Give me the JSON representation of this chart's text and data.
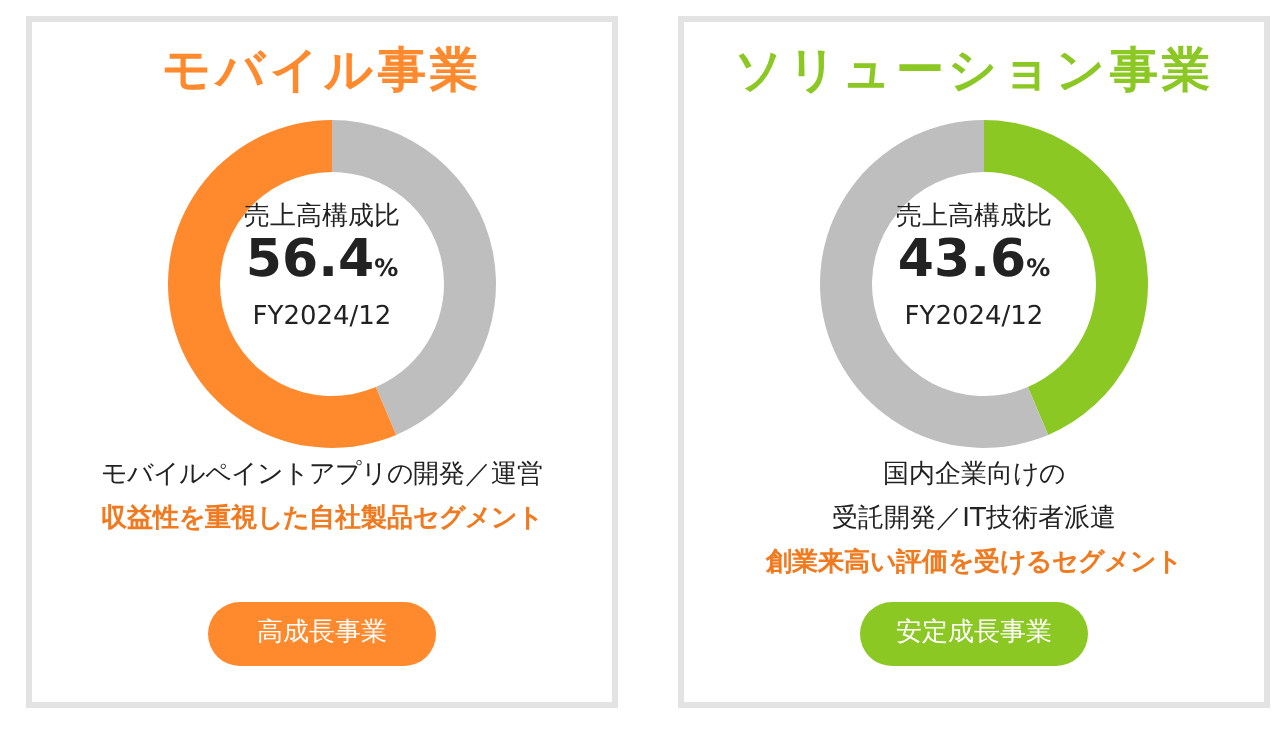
{
  "chart_data": [
    {
      "type": "donut",
      "title": "モバイル事業",
      "categories": [
        null,
        null
      ],
      "values": [
        43.6,
        56.4
      ],
      "colors": [
        "#bebebe",
        "#ff8a2e"
      ],
      "annotations": [
        "売上高構成比",
        "56.4%",
        "FY2024/12",
        "モバイルペイントアプリの開発／運営",
        "収益性を重視した自社製品セグメント",
        "高成長事業"
      ]
    },
    {
      "type": "donut",
      "title": "ソリューション事業",
      "categories": [
        null,
        null
      ],
      "values": [
        43.6,
        56.4
      ],
      "colors": [
        "#8cc824",
        "#bebebe"
      ],
      "annotations": [
        "売上高構成比",
        "43.6%",
        "FY2024/12",
        "国内企業向けの",
        "受託開発／IT技術者派遣",
        "創業来高い評価を受けるセグメント",
        "安定成長事業"
      ]
    }
  ]
}
